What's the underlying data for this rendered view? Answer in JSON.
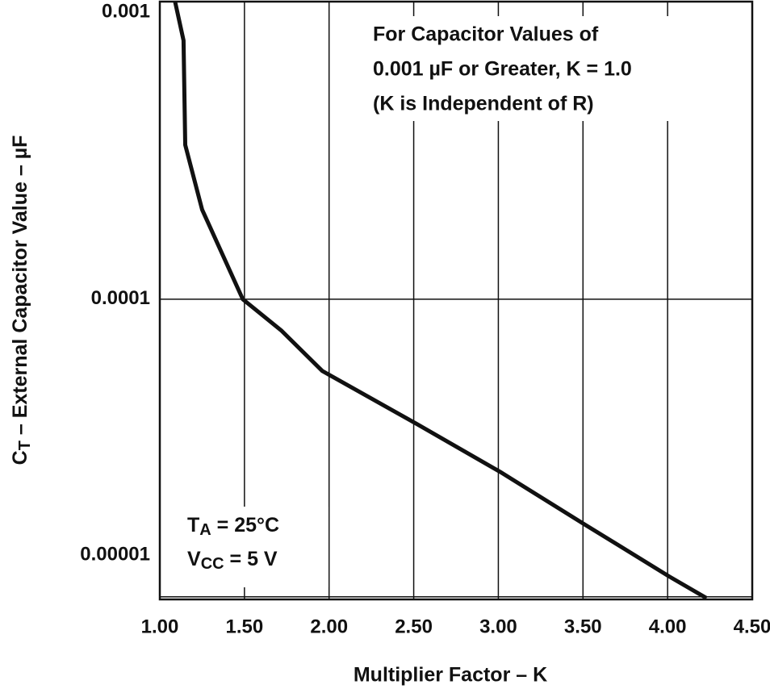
{
  "chart_data": {
    "type": "line",
    "x_label": "Multiplier Factor – K",
    "y_label": [
      "C",
      "T",
      " – External Capacitor Value – µF"
    ],
    "notes": [
      "For Capacitor Values of",
      "0.001 µF or Greater, K = 1.0",
      "(K is Independent of R)"
    ],
    "conditions": [
      [
        "T",
        "A",
        " = 25°C"
      ],
      [
        "V",
        "CC",
        " = 5 V"
      ]
    ],
    "log_y": true,
    "grid": true,
    "xlim": [
      1.0,
      4.5
    ],
    "xticks": [
      {
        "value": 1.0,
        "label": "1.00"
      },
      {
        "value": 1.5,
        "label": "1.50"
      },
      {
        "value": 2.0,
        "label": "2.00"
      },
      {
        "value": 2.5,
        "label": "2.50"
      },
      {
        "value": 3.0,
        "label": "3.00"
      },
      {
        "value": 3.5,
        "label": "3.50"
      },
      {
        "value": 4.0,
        "label": "4.00"
      },
      {
        "value": 4.5,
        "label": "4.50"
      }
    ],
    "ylim": [
      9.8e-06,
      0.001
    ],
    "yticks": [
      0.001,
      0.0001,
      1e-05
    ],
    "series": [
      {
        "color": "#111111",
        "x": [
          1.09,
          1.14,
          1.15,
          1.25,
          1.49,
          1.72,
          1.96,
          2.51,
          3.01,
          3.51,
          4.01,
          4.23
        ],
        "values": [
          0.001,
          0.00074,
          0.00033,
          0.0002,
          0.0001,
          7.83e-05,
          5.74e-05,
          3.83e-05,
          2.63e-05,
          1.75e-05,
          1.17e-05,
          9.9e-06
        ]
      }
    ]
  }
}
